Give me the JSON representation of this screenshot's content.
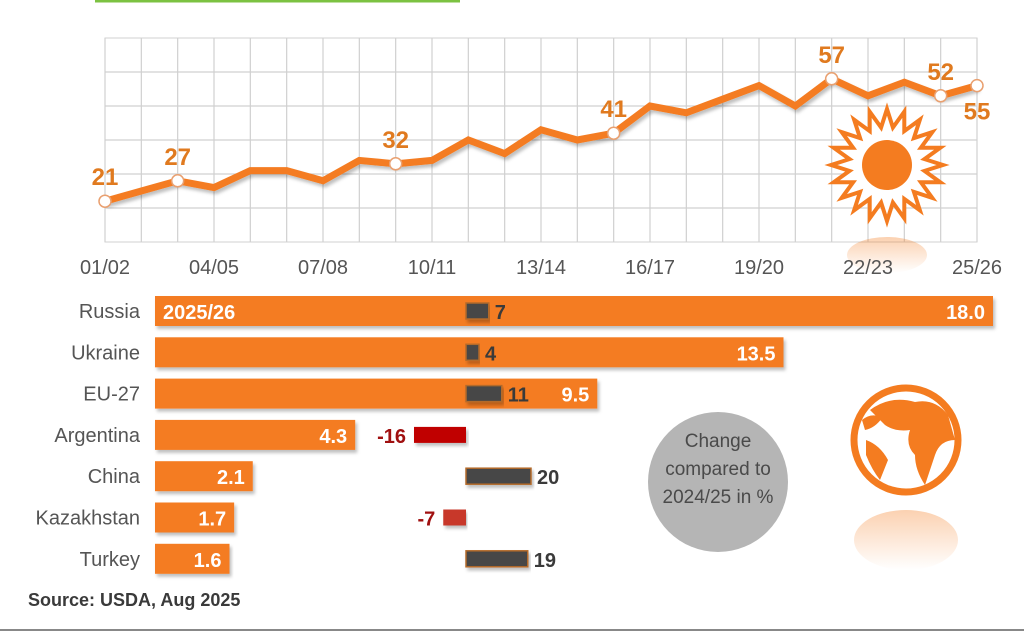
{
  "colors": {
    "orange": "#f47c20",
    "label_orange": "#e07a1f",
    "dark_bar": "#464646",
    "red_bar": "#c00000",
    "red_text": "#a01010",
    "grid": "#d0d0d0",
    "axis_text": "#555555",
    "circle": "#b5b5b5"
  },
  "chart_data": [
    {
      "type": "line",
      "title": "",
      "xlabel": "",
      "ylabel": "",
      "x": [
        "01/02",
        "02/03",
        "03/04",
        "04/05",
        "05/06",
        "06/07",
        "07/08",
        "08/09",
        "09/10",
        "10/11",
        "11/12",
        "12/13",
        "13/14",
        "14/15",
        "15/16",
        "16/17",
        "17/18",
        "18/19",
        "19/20",
        "20/21",
        "21/22",
        "22/23",
        "23/24",
        "24/25",
        "25/26"
      ],
      "x_tick_labels": [
        "01/02",
        "04/05",
        "07/08",
        "10/11",
        "13/14",
        "16/17",
        "19/20",
        "22/23",
        "25/26"
      ],
      "values": [
        21,
        24,
        27,
        25,
        30,
        30,
        27,
        33,
        32,
        33,
        39,
        35,
        42,
        39,
        41,
        49,
        47,
        51,
        55,
        49,
        57,
        52,
        56,
        52,
        55
      ],
      "data_labels": [
        {
          "x": "01/02",
          "text": "21"
        },
        {
          "x": "03/04",
          "text": "27"
        },
        {
          "x": "09/10",
          "text": "32"
        },
        {
          "x": "15/16",
          "text": "41"
        },
        {
          "x": "21/22",
          "text": "57"
        },
        {
          "x": "24/25",
          "text": "52"
        },
        {
          "x": "25/26",
          "text": "55"
        }
      ],
      "ylim": [
        9,
        69
      ],
      "grid": true,
      "icon": "sun-icon"
    },
    {
      "type": "bar",
      "orientation": "horizontal",
      "series_label": "2025/26",
      "categories": [
        "Russia",
        "Ukraine",
        "EU-27",
        "Argentina",
        "China",
        "Kazakhstan",
        "Turkey"
      ],
      "values": [
        18.0,
        13.5,
        9.5,
        4.3,
        2.1,
        1.7,
        1.6
      ],
      "value_labels": [
        "18.0",
        "13.5",
        "9.5",
        "4.3",
        "2.1",
        "1.7",
        "1.6"
      ],
      "change_pct": [
        7,
        4,
        11,
        -16,
        20,
        -7,
        19
      ],
      "change_labels": [
        "7",
        "4",
        "11",
        "-16",
        "20",
        "-7",
        "19"
      ],
      "change_note": [
        "Change",
        "compared to",
        "2024/25 in %"
      ],
      "xlim": [
        0,
        18
      ],
      "icon": "globe-icon"
    }
  ],
  "source": "Source: USDA, Aug 2025"
}
